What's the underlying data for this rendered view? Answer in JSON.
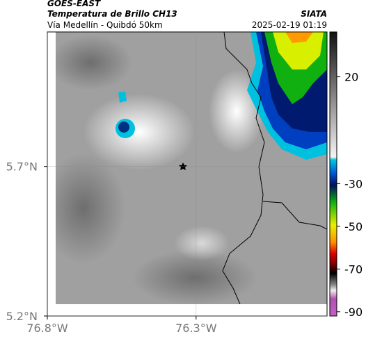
{
  "header": {
    "title": "GOES-EAST",
    "subtitle": "Temperatura de Brillo CH13",
    "region": "Vía Medellín - Quibdó 50km",
    "source": "SIATA",
    "datetime": "2025-02-19 01:19"
  },
  "map": {
    "xlim": [
      -76.8,
      -75.86
    ],
    "ylim": [
      5.2,
      6.15
    ],
    "xticks": [
      {
        "value": -76.8,
        "label": "76.8°W"
      },
      {
        "value": -76.3,
        "label": "76.3°W"
      }
    ],
    "yticks": [
      {
        "value": 5.7,
        "label": "5.7°N"
      },
      {
        "value": 5.2,
        "label": "5.2°N"
      }
    ]
  },
  "colorbar": {
    "range": [
      41,
      -92
    ],
    "ticks": [
      20,
      -30,
      -50,
      -70,
      -90
    ]
  }
}
